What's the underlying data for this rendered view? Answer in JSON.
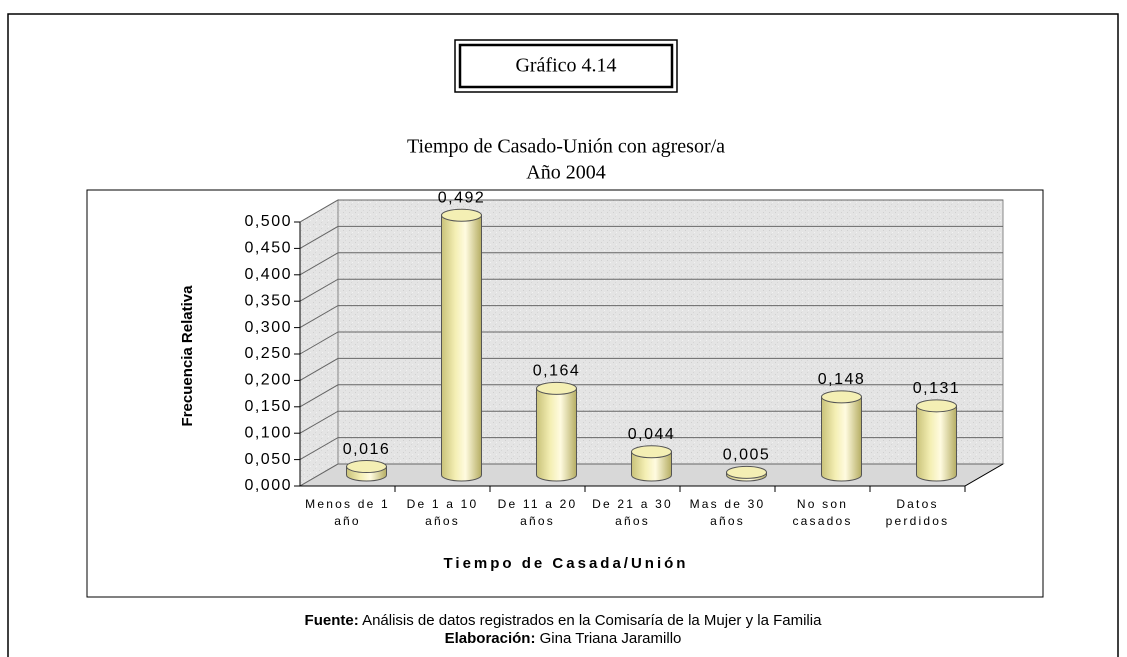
{
  "header": "Gráfico 4.14",
  "chart_data": {
    "type": "bar3d",
    "title": "Tiempo de Casado-Unión con agresor/a",
    "subtitle": "Año 2004",
    "x_label": "Tiempo de Casada/Unión",
    "y_label": "Frecuencia Relativa",
    "categories": [
      "Menos de 1 año",
      "De 1 a 10 años",
      "De 11 a 20 años",
      "De 21 a 30 años",
      "Mas de 30 años",
      "No son casados",
      "Datos perdidos"
    ],
    "values": [
      0.016,
      0.492,
      0.164,
      0.044,
      0.005,
      0.148,
      0.131
    ],
    "value_labels": [
      "0,016",
      "0,492",
      "0,164",
      "0,044",
      "0,005",
      "0,148",
      "0,131"
    ],
    "color": "#f4efb4",
    "ylim": [
      0,
      0.5
    ],
    "yticks": [
      {
        "value": 0,
        "label": "0,000"
      },
      {
        "value": 0.05,
        "label": "0,050"
      },
      {
        "value": 0.1,
        "label": "0,100"
      },
      {
        "value": 0.15,
        "label": "0,150"
      },
      {
        "value": 0.2,
        "label": "0,200"
      },
      {
        "value": 0.25,
        "label": "0,250"
      },
      {
        "value": 0.3,
        "label": "0,300"
      },
      {
        "value": 0.35,
        "label": "0,350"
      },
      {
        "value": 0.4,
        "label": "0,400"
      },
      {
        "value": 0.45,
        "label": "0,450"
      },
      {
        "value": 0.5,
        "label": "0,500"
      }
    ],
    "grid": true
  },
  "footer": {
    "source": {
      "label": "Fuente:",
      "text": "Análisis de datos registrados en la Comisaría de la Mujer y la Familia"
    },
    "credit": {
      "label": "Elaboración:",
      "text": "Gina Triana Jaramillo"
    }
  }
}
